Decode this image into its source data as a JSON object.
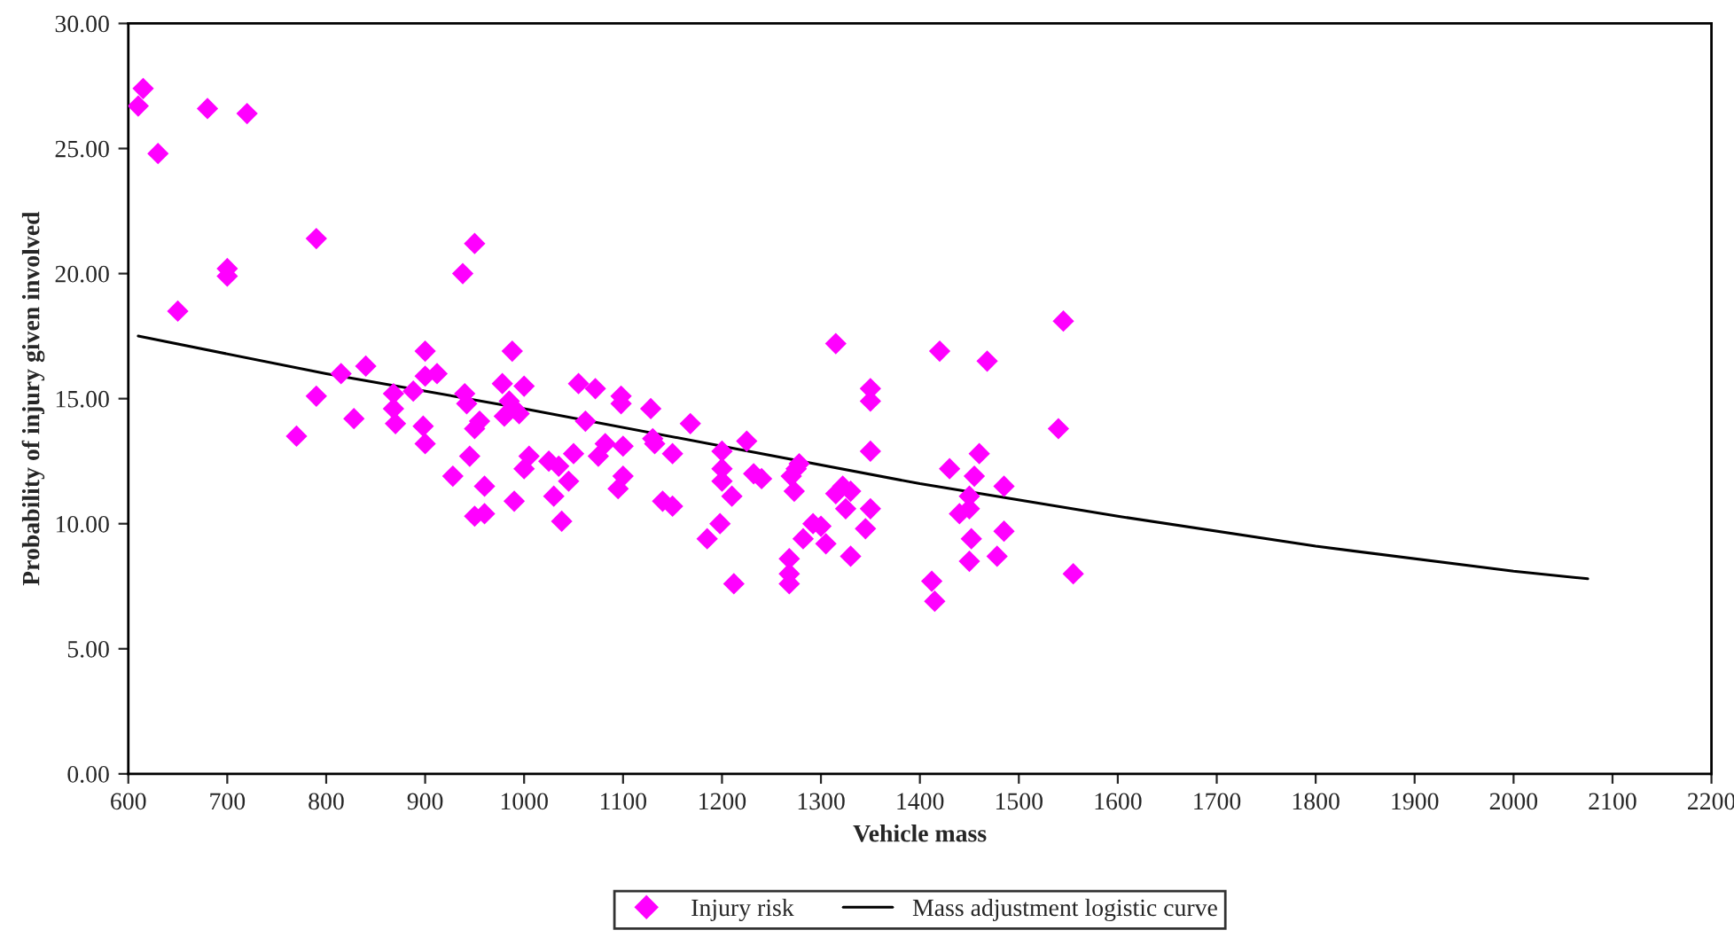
{
  "chart_data": {
    "type": "scatter",
    "xlabel": "Vehicle mass",
    "ylabel": "Probability of injury given involved",
    "xlim": [
      600,
      2200
    ],
    "xticks": [
      600,
      700,
      800,
      900,
      1000,
      1100,
      1200,
      1300,
      1400,
      1500,
      1600,
      1700,
      1800,
      1900,
      2000,
      2100,
      2200
    ],
    "ylim": [
      0,
      30
    ],
    "yticks": [
      {
        "value": 0,
        "label": "0.00"
      },
      {
        "value": 5,
        "label": "5.00"
      },
      {
        "value": 10,
        "label": "10.00"
      },
      {
        "value": 15,
        "label": "15.00"
      },
      {
        "value": 20,
        "label": "20.00"
      },
      {
        "value": 25,
        "label": "25.00"
      },
      {
        "value": 30,
        "label": "30.00"
      }
    ],
    "grid": false,
    "legend": "bottom",
    "series": [
      {
        "name": "Injury risk",
        "marker": "diamond",
        "color": "#ff00ff",
        "x": [
          610,
          615,
          630,
          650,
          680,
          700,
          700,
          720,
          770,
          790,
          790,
          815,
          828,
          840,
          868,
          868,
          870,
          888,
          898,
          900,
          900,
          900,
          912,
          928,
          938,
          940,
          942,
          945,
          950,
          950,
          950,
          955,
          960,
          960,
          978,
          980,
          985,
          988,
          990,
          990,
          995,
          1000,
          1000,
          1005,
          1025,
          1030,
          1035,
          1038,
          1045,
          1050,
          1055,
          1062,
          1072,
          1075,
          1082,
          1095,
          1098,
          1098,
          1100,
          1100,
          1128,
          1130,
          1132,
          1140,
          1150,
          1150,
          1168,
          1185,
          1198,
          1200,
          1200,
          1200,
          1210,
          1212,
          1225,
          1232,
          1240,
          1268,
          1268,
          1268,
          1270,
          1273,
          1275,
          1278,
          1282,
          1292,
          1300,
          1305,
          1315,
          1315,
          1322,
          1325,
          1330,
          1330,
          1345,
          1350,
          1350,
          1350,
          1350,
          1412,
          1415,
          1420,
          1430,
          1440,
          1450,
          1450,
          1450,
          1452,
          1455,
          1460,
          1468,
          1478,
          1485,
          1485,
          1540,
          1545,
          1555
        ],
        "values": [
          26.7,
          27.4,
          24.8,
          18.5,
          26.6,
          20.2,
          19.9,
          26.4,
          13.5,
          21.4,
          15.1,
          16.0,
          14.2,
          16.3,
          15.2,
          14.6,
          14.0,
          15.3,
          13.9,
          15.9,
          16.9,
          13.2,
          16.0,
          11.9,
          20.0,
          15.2,
          14.8,
          12.7,
          21.2,
          13.8,
          10.3,
          14.1,
          11.5,
          10.4,
          15.6,
          14.3,
          14.9,
          16.9,
          14.6,
          10.9,
          14.4,
          15.5,
          12.2,
          12.7,
          12.5,
          11.1,
          12.3,
          10.1,
          11.7,
          12.8,
          15.6,
          14.1,
          15.4,
          12.7,
          13.2,
          11.4,
          15.1,
          14.8,
          13.1,
          11.9,
          14.6,
          13.4,
          13.2,
          10.9,
          12.8,
          10.7,
          14.0,
          9.4,
          10.0,
          12.9,
          12.2,
          11.7,
          11.1,
          7.6,
          13.3,
          12.0,
          11.8,
          8.6,
          8.0,
          7.6,
          11.9,
          11.3,
          12.2,
          12.4,
          9.4,
          10.0,
          9.9,
          9.2,
          17.2,
          11.2,
          11.5,
          10.6,
          8.7,
          11.3,
          9.8,
          15.4,
          14.9,
          12.9,
          10.6,
          7.7,
          6.9,
          16.9,
          12.2,
          10.4,
          8.5,
          11.1,
          10.6,
          9.4,
          11.9,
          12.8,
          16.5,
          8.7,
          11.5,
          9.7,
          13.8,
          18.1,
          8.0
        ]
      },
      {
        "name": "Mass adjustment logistic curve",
        "type": "line",
        "marker": "none",
        "line_style": "solid",
        "color": "#000000",
        "x": [
          610,
          800,
          1000,
          1200,
          1400,
          1600,
          1800,
          2000,
          2075
        ],
        "values": [
          17.5,
          16.0,
          14.6,
          13.1,
          11.6,
          10.3,
          9.1,
          8.1,
          7.8
        ]
      }
    ]
  }
}
